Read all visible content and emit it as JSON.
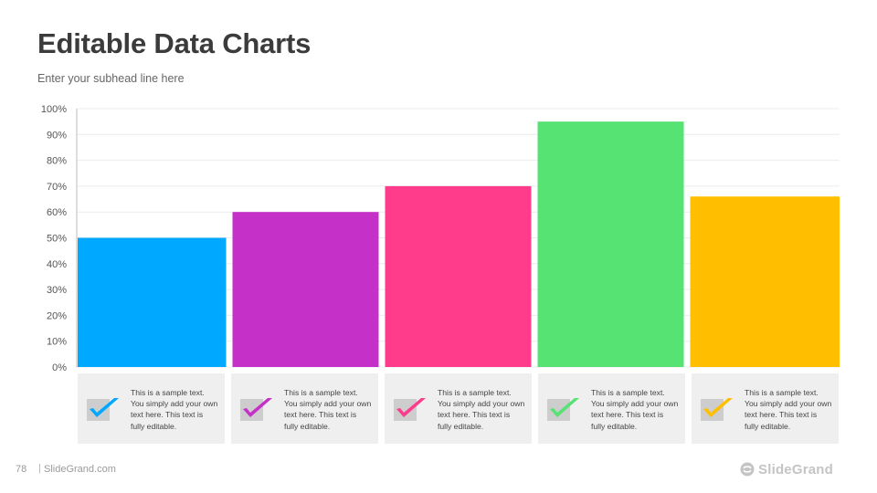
{
  "slide": {
    "title": "Editable Data Charts",
    "subhead": "Enter your subhead line here",
    "page_number": "78",
    "separator": "|",
    "site": "SlideGrand.com",
    "brand": "SlideGrand"
  },
  "chart_data": {
    "type": "bar",
    "categories": [
      "",
      "",
      "",
      "",
      ""
    ],
    "values": [
      50,
      60,
      70,
      95,
      66
    ],
    "colors": [
      "#00A8FF",
      "#C531C8",
      "#FF3B8B",
      "#57E274",
      "#FFBF00"
    ],
    "ylim": [
      0,
      100
    ],
    "yticks": [
      "0%",
      "10%",
      "20%",
      "30%",
      "40%",
      "50%",
      "60%",
      "70%",
      "80%",
      "90%",
      "100%"
    ],
    "grid": true,
    "legend": "none"
  },
  "cards": [
    {
      "text": "This is a sample text. You simply add your own text here. This text is fully editable.",
      "icon": "checkmark-icon",
      "color": "#00A8FF"
    },
    {
      "text": "This is a sample text. You simply add your own text here. This text is fully editable.",
      "icon": "checkmark-icon",
      "color": "#C531C8"
    },
    {
      "text": "This is a sample text. You simply add your own text here. This text is fully editable.",
      "icon": "checkmark-icon",
      "color": "#FF3B8B"
    },
    {
      "text": "This is a sample text. You simply add your own text here. This text is fully editable.",
      "icon": "checkmark-icon",
      "color": "#57E274"
    },
    {
      "text": "This is a sample text. You simply add your own text here. This text is fully editable.",
      "icon": "checkmark-icon",
      "color": "#FFBF00"
    }
  ]
}
